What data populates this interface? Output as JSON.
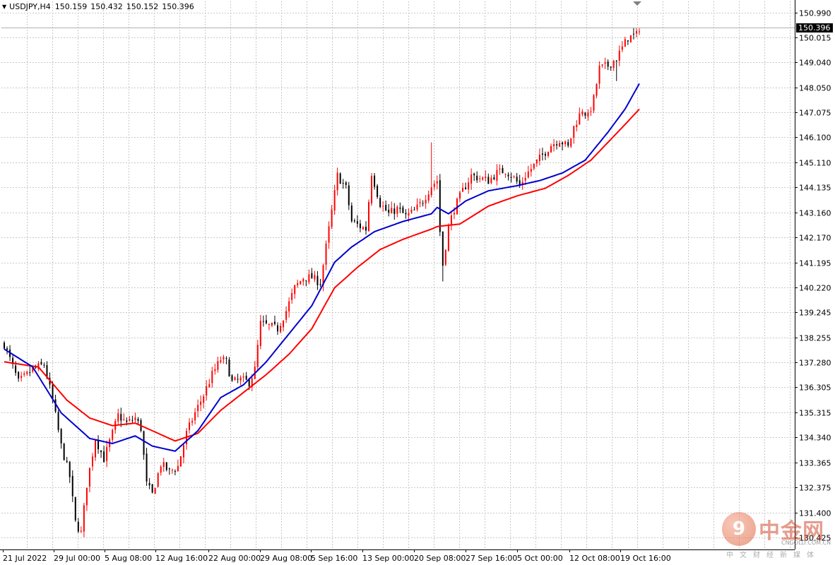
{
  "header": {
    "symbol": "USDJPY,H4",
    "open": "150.159",
    "high": "150.432",
    "low": "150.152",
    "close": "150.396",
    "menu_icon": "triangle-down-icon"
  },
  "current_price_label": "150.396",
  "watermark": {
    "logo_glyph": "9",
    "name": "中金网",
    "url": "CNGOLD.COM.CN",
    "tagline": "中文财经新媒体"
  },
  "colors": {
    "bull": "#ff0000",
    "bear": "#000000",
    "ma_fast": "#0000cd",
    "ma_slow": "#ff0000",
    "grid": "#c8c8c8",
    "axis": "#000000"
  },
  "chart_data": {
    "type": "candlestick",
    "title": "USDJPY,H4",
    "grid": true,
    "ylim": [
      130.0,
      151.4
    ],
    "y_ticks": [
      "150.990",
      "150.015",
      "149.040",
      "148.050",
      "147.075",
      "146.100",
      "145.110",
      "144.135",
      "143.160",
      "142.170",
      "141.195",
      "140.220",
      "139.245",
      "138.255",
      "137.280",
      "136.305",
      "135.315",
      "134.340",
      "133.365",
      "132.375",
      "131.400",
      "130.425"
    ],
    "x_ticks": [
      "21 Jul 2022",
      "29 Jul 00:00",
      "5 Aug 08:00",
      "12 Aug 16:00",
      "22 Aug 00:00",
      "29 Aug 08:00",
      "5 Sep 16:00",
      "13 Sep 00:00",
      "20 Sep 08:00",
      "27 Sep 16:00",
      "5 Oct 00:00",
      "12 Oct 08:00",
      "19 Oct 16:00"
    ],
    "current_price": 150.396,
    "close_anchors": [
      [
        0,
        138.0
      ],
      [
        3,
        137.1
      ],
      [
        5,
        136.5
      ],
      [
        8,
        136.8
      ],
      [
        10,
        137.0
      ],
      [
        14,
        137.2
      ],
      [
        17,
        135.8
      ],
      [
        20,
        134.0
      ],
      [
        23,
        132.8
      ],
      [
        25,
        131.0
      ],
      [
        27,
        130.6
      ],
      [
        29,
        132.5
      ],
      [
        32,
        134.3
      ],
      [
        35,
        133.5
      ],
      [
        38,
        134.5
      ],
      [
        40,
        135.2
      ],
      [
        43,
        134.9
      ],
      [
        46,
        135.1
      ],
      [
        48,
        134.7
      ],
      [
        50,
        132.5
      ],
      [
        52,
        132.1
      ],
      [
        55,
        133.3
      ],
      [
        58,
        133.0
      ],
      [
        61,
        133.2
      ],
      [
        64,
        134.5
      ],
      [
        67,
        135.3
      ],
      [
        70,
        136.0
      ],
      [
        73,
        136.8
      ],
      [
        76,
        137.4
      ],
      [
        78,
        137.3
      ],
      [
        80,
        136.5
      ],
      [
        83,
        136.6
      ],
      [
        86,
        136.5
      ],
      [
        88,
        137.0
      ],
      [
        90,
        138.8
      ],
      [
        93,
        138.7
      ],
      [
        96,
        138.6
      ],
      [
        99,
        139.3
      ],
      [
        102,
        140.2
      ],
      [
        105,
        140.6
      ],
      [
        108,
        140.6
      ],
      [
        111,
        140.4
      ],
      [
        114,
        142.5
      ],
      [
        117,
        144.6
      ],
      [
        120,
        144.1
      ],
      [
        122,
        142.8
      ],
      [
        125,
        142.6
      ],
      [
        127,
        142.5
      ],
      [
        129,
        144.7
      ],
      [
        132,
        143.5
      ],
      [
        135,
        143.1
      ],
      [
        138,
        143.3
      ],
      [
        141,
        143.0
      ],
      [
        144,
        143.2
      ],
      [
        147,
        143.6
      ],
      [
        150,
        144.2
      ],
      [
        152,
        144.4
      ],
      [
        153,
        142.4
      ],
      [
        154,
        141.1
      ],
      [
        156,
        142.6
      ],
      [
        158,
        143.3
      ],
      [
        161,
        144.0
      ],
      [
        164,
        144.6
      ],
      [
        167,
        144.5
      ],
      [
        170,
        144.4
      ],
      [
        173,
        144.7
      ],
      [
        176,
        144.8
      ],
      [
        179,
        144.5
      ],
      [
        181,
        144.2
      ],
      [
        183,
        144.6
      ],
      [
        186,
        145.0
      ],
      [
        189,
        145.4
      ],
      [
        192,
        145.8
      ],
      [
        195,
        146.0
      ],
      [
        198,
        145.7
      ],
      [
        200,
        146.5
      ],
      [
        203,
        147.2
      ],
      [
        205,
        146.9
      ],
      [
        207,
        147.6
      ],
      [
        209,
        148.8
      ],
      [
        212,
        148.9
      ],
      [
        215,
        149.2
      ],
      [
        217,
        149.6
      ],
      [
        219,
        150.0
      ],
      [
        222,
        150.1
      ],
      [
        223,
        150.396
      ]
    ],
    "ma_fast_anchors": [
      [
        0,
        137.8
      ],
      [
        10,
        137.1
      ],
      [
        20,
        135.3
      ],
      [
        30,
        134.3
      ],
      [
        38,
        134.1
      ],
      [
        46,
        134.4
      ],
      [
        52,
        134.0
      ],
      [
        60,
        133.8
      ],
      [
        68,
        134.6
      ],
      [
        76,
        135.9
      ],
      [
        84,
        136.4
      ],
      [
        92,
        137.3
      ],
      [
        100,
        138.4
      ],
      [
        108,
        139.5
      ],
      [
        116,
        141.2
      ],
      [
        122,
        141.8
      ],
      [
        130,
        142.4
      ],
      [
        140,
        142.8
      ],
      [
        150,
        143.1
      ],
      [
        152,
        143.35
      ],
      [
        156,
        143.1
      ],
      [
        162,
        143.6
      ],
      [
        170,
        144.0
      ],
      [
        180,
        144.2
      ],
      [
        188,
        144.4
      ],
      [
        196,
        144.7
      ],
      [
        204,
        145.2
      ],
      [
        212,
        146.3
      ],
      [
        218,
        147.2
      ],
      [
        223,
        148.2
      ]
    ],
    "ma_slow_anchors": [
      [
        0,
        137.3
      ],
      [
        12,
        137.1
      ],
      [
        22,
        135.8
      ],
      [
        30,
        135.1
      ],
      [
        38,
        134.8
      ],
      [
        46,
        134.9
      ],
      [
        52,
        134.6
      ],
      [
        60,
        134.2
      ],
      [
        68,
        134.5
      ],
      [
        76,
        135.4
      ],
      [
        84,
        136.1
      ],
      [
        92,
        136.8
      ],
      [
        100,
        137.6
      ],
      [
        108,
        138.6
      ],
      [
        116,
        140.2
      ],
      [
        124,
        141.0
      ],
      [
        132,
        141.7
      ],
      [
        140,
        142.1
      ],
      [
        150,
        142.5
      ],
      [
        152,
        142.6
      ],
      [
        160,
        142.7
      ],
      [
        170,
        143.4
      ],
      [
        180,
        143.8
      ],
      [
        190,
        144.1
      ],
      [
        198,
        144.6
      ],
      [
        206,
        145.2
      ],
      [
        212,
        145.9
      ],
      [
        218,
        146.6
      ],
      [
        223,
        147.2
      ]
    ],
    "series": [
      {
        "name": "MA fast",
        "color": "#0000cd"
      },
      {
        "name": "MA slow",
        "color": "#ff0000"
      }
    ]
  }
}
